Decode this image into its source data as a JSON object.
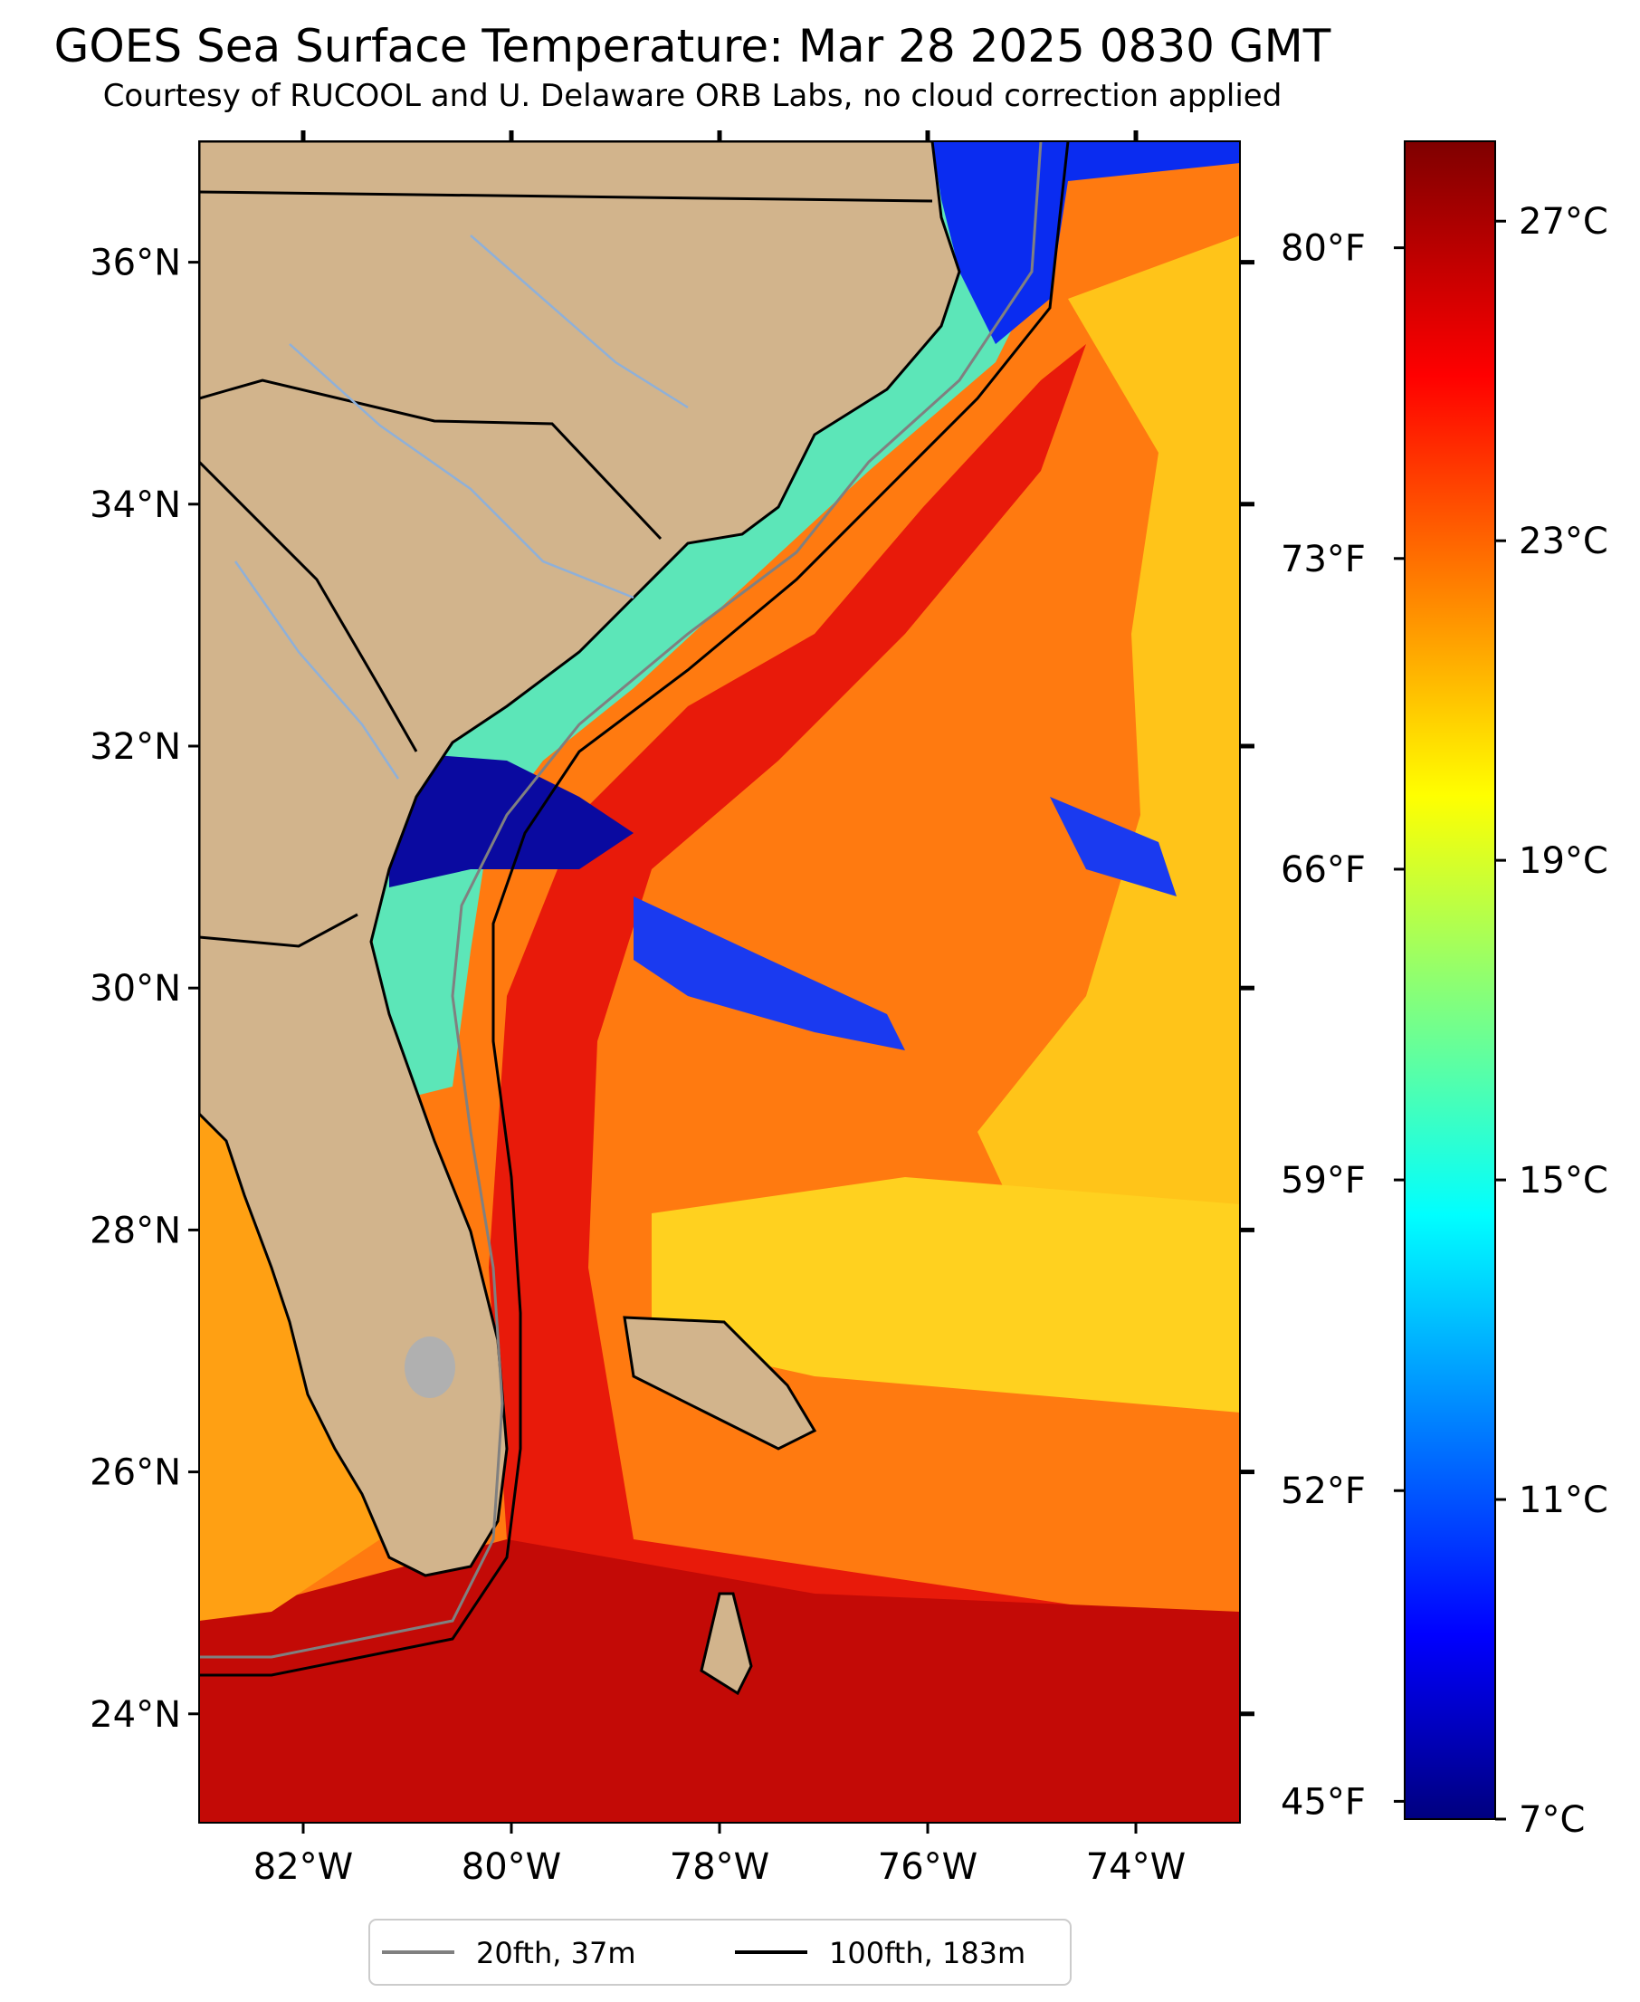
{
  "title": "GOES Sea Surface Temperature: Mar 28 2025 0830 GMT",
  "subtitle": "Courtesy of RUCOOL and U. Delaware ORB Labs, no cloud correction applied",
  "map": {
    "lon_range": [
      -83,
      -73
    ],
    "lat_range": [
      23.1,
      37.0
    ],
    "lon_ticks": [
      {
        "value": -82,
        "label": "82°W"
      },
      {
        "value": -80,
        "label": "80°W"
      },
      {
        "value": -78,
        "label": "78°W"
      },
      {
        "value": -76,
        "label": "76°W"
      },
      {
        "value": -74,
        "label": "74°W"
      }
    ],
    "lat_ticks": [
      {
        "value": 24,
        "label": "24°N"
      },
      {
        "value": 26,
        "label": "26°N"
      },
      {
        "value": 28,
        "label": "28°N"
      },
      {
        "value": 30,
        "label": "30°N"
      },
      {
        "value": 32,
        "label": "32°N"
      },
      {
        "value": 34,
        "label": "34°N"
      },
      {
        "value": 36,
        "label": "36°N"
      }
    ],
    "land_color": "#d2b48c",
    "state_border_color": "#000000",
    "river_color": "#8fb0d8"
  },
  "colorbar": {
    "range_c": [
      7,
      28
    ],
    "colormap": "jet",
    "celsius_ticks": [
      {
        "value": 27,
        "label": "27°C"
      },
      {
        "value": 23,
        "label": "23°C"
      },
      {
        "value": 19,
        "label": "19°C"
      },
      {
        "value": 15,
        "label": "15°C"
      },
      {
        "value": 11,
        "label": "11°C"
      },
      {
        "value": 7,
        "label": "7°C"
      }
    ],
    "fahrenheit_ticks": [
      {
        "value": 80,
        "label": "80°F"
      },
      {
        "value": 73,
        "label": "73°F"
      },
      {
        "value": 66,
        "label": "66°F"
      },
      {
        "value": 59,
        "label": "59°F"
      },
      {
        "value": 52,
        "label": "52°F"
      },
      {
        "value": 45,
        "label": "45°F"
      }
    ]
  },
  "legend": {
    "items": [
      {
        "label": "20fth, 37m",
        "color": "#808080"
      },
      {
        "label": "100fth, 183m",
        "color": "#000000"
      }
    ]
  }
}
